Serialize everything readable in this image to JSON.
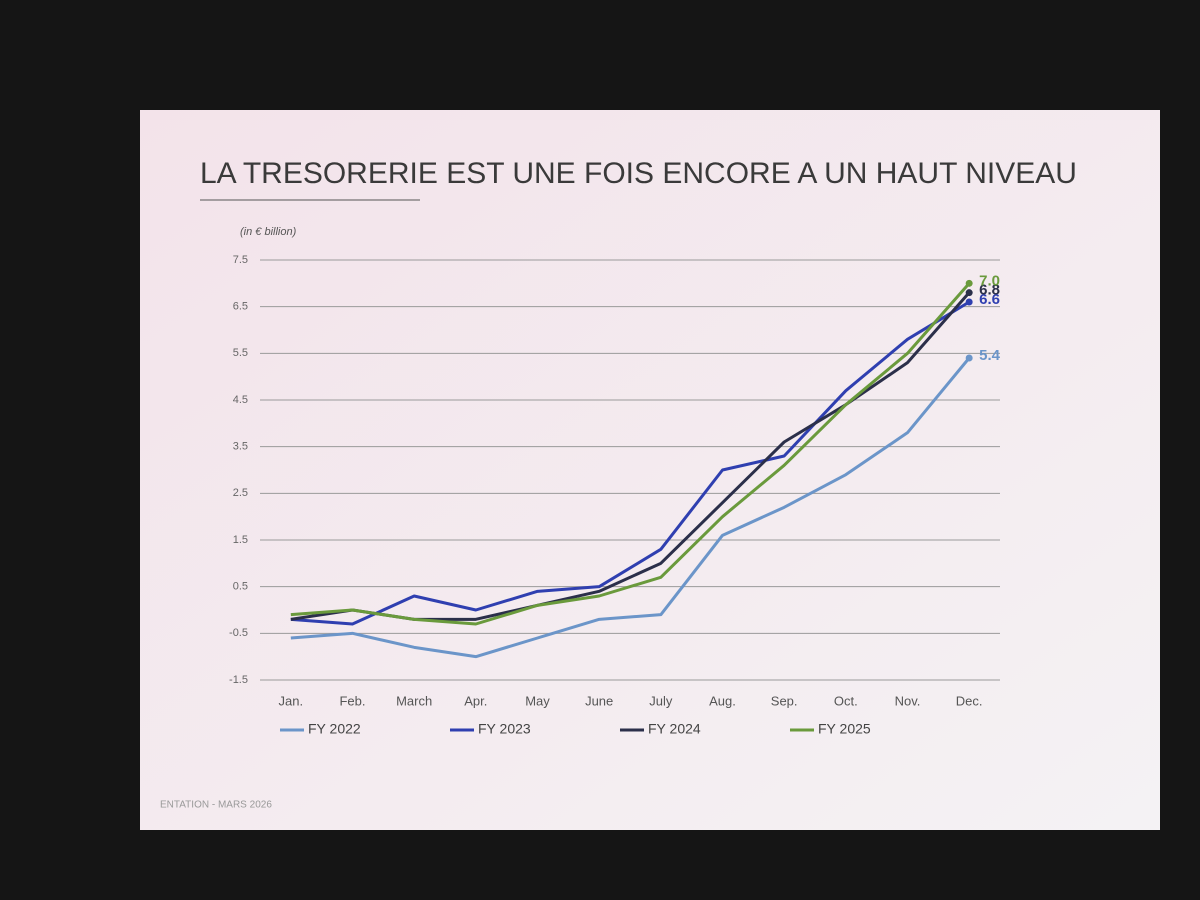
{
  "chart_data": {
    "type": "line",
    "title": "LA TRESORERIE EST UNE FOIS ENCORE A UN HAUT NIVEAU",
    "subtitle": "(in € billion)",
    "footer": "ENTATION - MARS 2026",
    "categories": [
      "Jan.",
      "Feb.",
      "March",
      "Apr.",
      "May",
      "June",
      "July",
      "Aug.",
      "Sep.",
      "Oct.",
      "Nov.",
      "Dec."
    ],
    "series": [
      {
        "name": "FY 2022",
        "color": "#6b95c9",
        "values": [
          -0.6,
          -0.5,
          -0.8,
          -1.0,
          -0.6,
          -0.2,
          -0.1,
          1.6,
          2.2,
          2.9,
          3.8,
          5.4
        ],
        "value_labels": [
          null,
          null,
          null,
          null,
          null,
          null,
          null,
          null,
          null,
          null,
          null,
          "5.4"
        ]
      },
      {
        "name": "FY 2023",
        "color": "#2f3fb0",
        "values": [
          -0.2,
          -0.3,
          0.3,
          0.0,
          0.4,
          0.5,
          1.3,
          3.0,
          3.3,
          4.7,
          5.8,
          6.6
        ],
        "value_labels": [
          null,
          null,
          null,
          null,
          null,
          null,
          null,
          null,
          null,
          null,
          null,
          "6.6"
        ]
      },
      {
        "name": "FY 2024",
        "color": "#2b2f4a",
        "values": [
          -0.2,
          0.0,
          -0.2,
          -0.2,
          0.1,
          0.4,
          1.0,
          2.3,
          3.6,
          4.4,
          5.3,
          6.8
        ],
        "value_labels": [
          null,
          null,
          null,
          null,
          null,
          null,
          null,
          null,
          null,
          null,
          null,
          "6.8"
        ]
      },
      {
        "name": "FY 2025",
        "color": "#6a9a3c",
        "values": [
          -0.1,
          0.0,
          -0.2,
          -0.3,
          0.1,
          0.3,
          0.7,
          2.0,
          3.1,
          4.4,
          5.5,
          7.0
        ],
        "value_labels": [
          null,
          null,
          null,
          null,
          null,
          null,
          null,
          null,
          null,
          null,
          null,
          "7.0"
        ]
      }
    ],
    "ylim": [
      -1.5,
      7.5
    ],
    "yticks": [
      7.5,
      6.5,
      5.5,
      4.5,
      3.5,
      2.5,
      1.5,
      0.5,
      -0.5,
      -1.5
    ],
    "grid": true
  }
}
